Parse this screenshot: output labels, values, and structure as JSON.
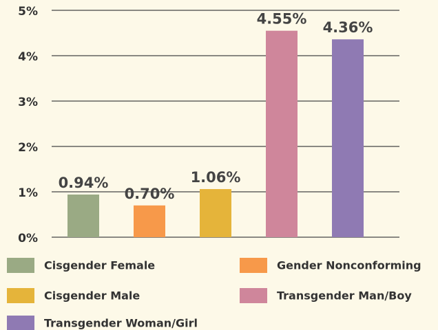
{
  "chart_data": {
    "type": "bar",
    "categories": [
      "Cisgender Female",
      "Gender Nonconforming",
      "Cisgender Male",
      "Transgender Man/Boy",
      "Transgender Woman/Girl"
    ],
    "values": [
      0.94,
      0.7,
      1.06,
      4.55,
      4.36
    ],
    "value_labels": [
      "0.94%",
      "0.70%",
      "1.06%",
      "4.55%",
      "4.36%"
    ],
    "colors": [
      "#9aaa84",
      "#f7994a",
      "#e5b43a",
      "#cf869b",
      "#8f7ab3"
    ],
    "ylim": [
      0,
      5
    ],
    "yticks": [
      {
        "value": 0,
        "label": "0%"
      },
      {
        "value": 1,
        "label": "1%"
      },
      {
        "value": 2,
        "label": "2%"
      },
      {
        "value": 3,
        "label": "3%"
      },
      {
        "value": 4,
        "label": "4%"
      },
      {
        "value": 5,
        "label": "5%"
      }
    ],
    "grid": true
  }
}
